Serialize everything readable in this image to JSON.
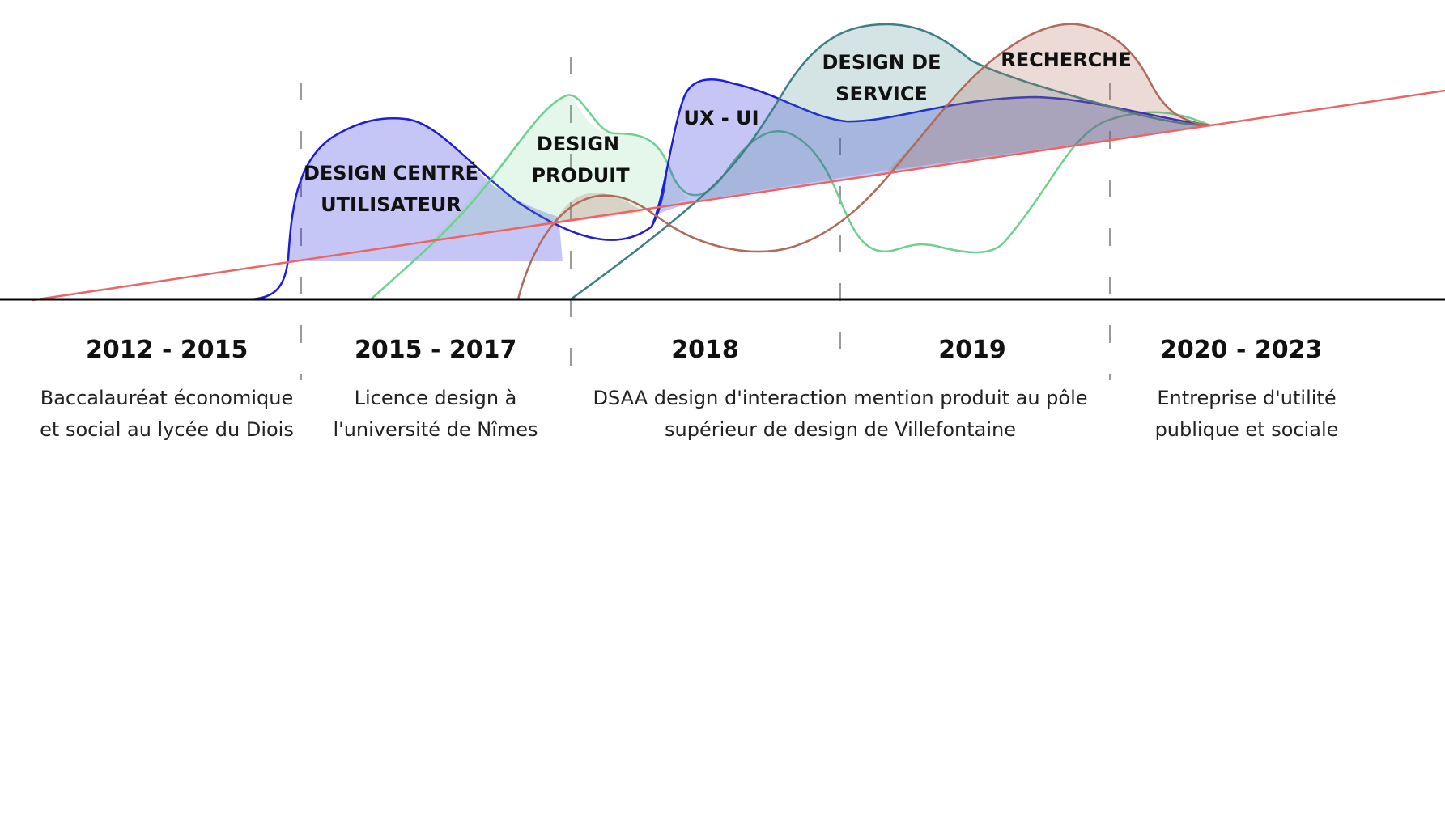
{
  "colors": {
    "ucd": "#1d1ddb",
    "product": "#6fd18e",
    "ux": "#1d1ddb",
    "service": "#3c7f86",
    "research": "#b06a5a",
    "trend": "#ee6464",
    "axis": "#000000",
    "divider": "#9a9a9a"
  },
  "areas": {
    "ucd": {
      "line1": "DESIGN CENTRÉ",
      "line2": "UTILISATEUR"
    },
    "product": {
      "line1": "DESIGN",
      "line2": "PRODUIT"
    },
    "ux": {
      "line1": "UX - UI"
    },
    "service": {
      "line1": "DESIGN DE",
      "line2": "SERVICE"
    },
    "research": {
      "line1": "RECHERCHE"
    }
  },
  "periods": [
    {
      "title": "2012 - 2015",
      "desc1": "Baccalauréat économique",
      "desc2": "et social au lycée du Diois"
    },
    {
      "title": "2015 - 2017",
      "desc1": "Licence design à",
      "desc2": "l'université de Nîmes"
    },
    {
      "title": "2018"
    },
    {
      "title": "2019"
    },
    {
      "title": "2020 - 2023",
      "desc1": "Entreprise d'utilité",
      "desc2": "publique et sociale"
    }
  ],
  "shared_desc": {
    "desc1": "DSAA design d'interaction mention produit au pôle",
    "desc2": "supérieur de design de Villefontaine"
  }
}
